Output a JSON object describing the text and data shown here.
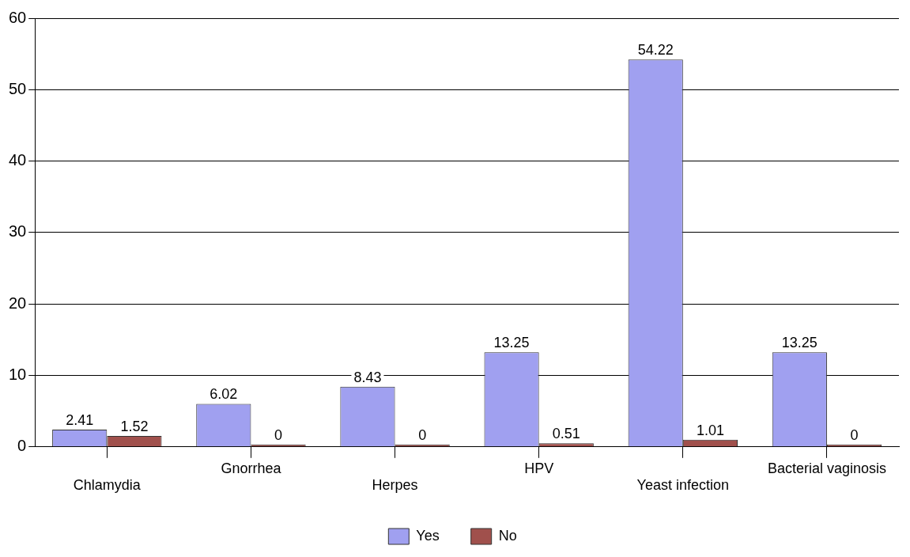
{
  "chart_data": {
    "type": "bar",
    "categories": [
      "Chlamydia",
      "Gnorrhea",
      "Herpes",
      "HPV",
      "Yeast infection",
      "Bacterial vaginosis"
    ],
    "series": [
      {
        "name": "Yes",
        "color": "#a0a0f0",
        "values": [
          2.41,
          6.02,
          8.43,
          13.25,
          54.22,
          13.25
        ]
      },
      {
        "name": "No",
        "color": "#a0504c",
        "values": [
          1.52,
          0,
          0,
          0.51,
          1.01,
          0
        ]
      }
    ],
    "ylim": [
      0,
      60
    ],
    "yticks": [
      0,
      10,
      20,
      30,
      40,
      50,
      60
    ],
    "grid": "y",
    "legend": "bottom",
    "data_labels": true
  }
}
